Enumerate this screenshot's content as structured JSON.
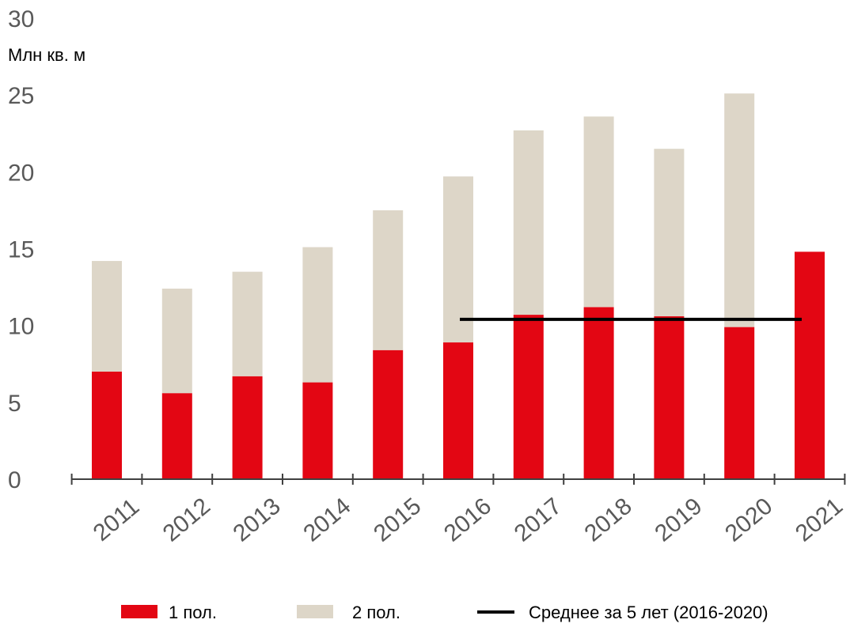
{
  "chart_data": {
    "type": "bar",
    "stacked": true,
    "ylabel": "Млн кв. м",
    "ylim": [
      0,
      30
    ],
    "yticks": [
      0,
      5,
      10,
      15,
      20,
      25,
      30
    ],
    "categories": [
      "2011",
      "2012",
      "2013",
      "2014",
      "2015",
      "2016",
      "2017",
      "2018",
      "2019",
      "2020",
      "2021"
    ],
    "series": [
      {
        "name": "1 пол.",
        "color": "#e30613",
        "values": [
          7.0,
          5.6,
          6.7,
          6.3,
          8.4,
          8.9,
          10.7,
          11.2,
          10.6,
          9.9,
          14.8
        ]
      },
      {
        "name": "2 пол.",
        "color": "#ddd6c8",
        "values": [
          7.2,
          6.8,
          6.8,
          8.8,
          9.1,
          10.8,
          12.0,
          12.4,
          10.9,
          15.2,
          null
        ]
      }
    ],
    "average_line": {
      "name": "Среднее за 5 лет (2016-2020)",
      "color": "#000000",
      "value": 10.4,
      "from": "2016",
      "to": "2021"
    },
    "legend_position": "bottom",
    "grid": false
  }
}
